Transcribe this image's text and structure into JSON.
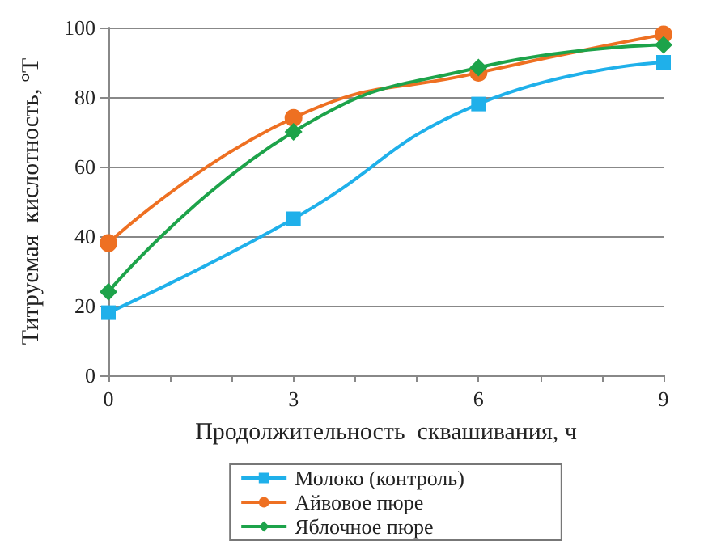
{
  "chart_data": {
    "type": "line",
    "xlabel": "Продолжительность  сквашивания, ч",
    "ylabel": "Титруемая  кислотность, °Т",
    "x": [
      0,
      3,
      6,
      9
    ],
    "series": [
      {
        "name": "Молоко (контроль)",
        "color": "#1fb0ea",
        "marker": "square",
        "values": [
          18,
          45,
          78,
          90
        ]
      },
      {
        "name": "Айвовое пюре",
        "color": "#ee7022",
        "marker": "circle",
        "values": [
          38,
          74,
          87,
          98
        ]
      },
      {
        "name": "Яблочное пюре",
        "color": "#1da34a",
        "marker": "diamond",
        "values": [
          24,
          70,
          88.5,
          95
        ]
      }
    ],
    "xlim": [
      0,
      9
    ],
    "xticks": [
      0,
      {
        "value": 1,
        "label": null
      },
      {
        "value": 2,
        "label": null
      },
      3,
      {
        "value": 4,
        "label": null
      },
      {
        "value": 5,
        "label": null
      },
      6,
      {
        "value": 7,
        "label": null
      },
      {
        "value": 8,
        "label": null
      },
      9
    ],
    "ylim": [
      0,
      100
    ],
    "yticks": [
      0,
      20,
      40,
      60,
      80,
      100
    ],
    "grid": "y",
    "legend": "bottom"
  }
}
